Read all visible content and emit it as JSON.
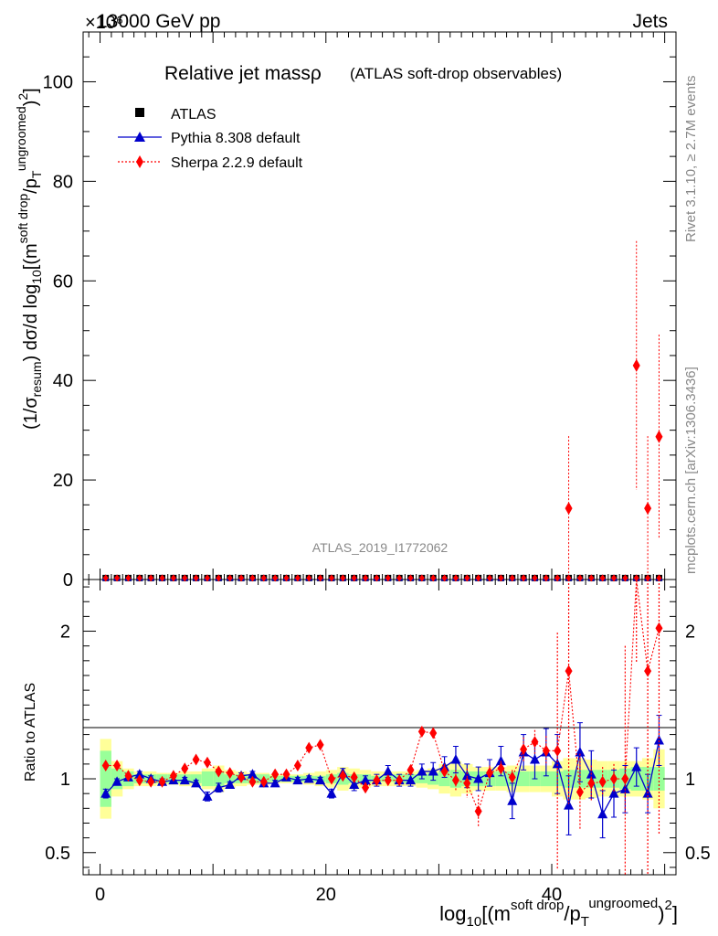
{
  "header": {
    "left": "13000 GeV pp",
    "right": "Jets",
    "exponent": "×10⁶"
  },
  "title": {
    "main": "Relative jet massρ",
    "sub": "(ATLAS soft-drop observables)"
  },
  "side": {
    "rivet": "Rivet 3.1.10, ≥ 2.7M events",
    "mcplots": "mcplots.cern.ch [arXiv:1306.3436]"
  },
  "watermark": "ATLAS_2019_I1772062",
  "legend": {
    "atlas": "ATLAS",
    "pythia": "Pythia 8.308 default",
    "sherpa": "Sherpa 2.2.9 default"
  },
  "axes": {
    "ylabel_pre": "(1/σ",
    "ylabel_sub": "resum",
    "ylabel_post": ") dσ/d log",
    "ylabel_10": "10",
    "ylabel_rest": "[(m",
    "ylabel_sup1": "soft drop",
    "ylabel_slash": "/p",
    "ylabel_T": "T",
    "ylabel_sup2": "ungroomed",
    "ylabel_end": ")",
    "ylabel_sq": "2",
    "ylabel_close": "]",
    "ratio_label": "Ratio to ATLAS",
    "xlabel_pre": "log",
    "xlabel_10": "10",
    "xlabel_rest": "[(m",
    "xlabel_sup1": "soft drop",
    "xlabel_slash": "/p",
    "xlabel_T": "T",
    "xlabel_sup2": "ungroomed",
    "xlabel_end": ")",
    "xlabel_sq": "2",
    "xlabel_close": "]"
  },
  "chart_data": {
    "type": "line",
    "x": [
      0.5,
      1.5,
      2.5,
      3.5,
      4.5,
      5.5,
      6.5,
      7.5,
      8.5,
      9.5,
      10.5,
      11.5,
      12.5,
      13.5,
      14.5,
      15.5,
      16.5,
      17.5,
      18.5,
      19.5,
      20.5,
      21.5,
      22.5,
      23.5,
      24.5,
      25.5,
      26.5,
      27.5,
      28.5,
      29.5,
      30.5,
      31.5,
      32.5,
      33.5,
      34.5,
      35.5,
      36.5,
      37.5,
      38.5,
      39.5,
      40.5,
      41.5,
      42.5,
      43.5,
      44.5,
      45.5,
      46.5,
      47.5,
      48.5,
      49.5
    ],
    "xlim": [
      -1.5,
      51
    ],
    "xticks": [
      0,
      20,
      40
    ],
    "main_ylim": [
      0,
      110
    ],
    "main_yticks": [
      0,
      20,
      40,
      60,
      80,
      100
    ],
    "ratio_ylim": [
      0.35,
      2.35
    ],
    "ratio_yticks": [
      0.5,
      1,
      2
    ],
    "ratio_ytick_labels": [
      "0.5",
      "1",
      "2"
    ],
    "series": [
      {
        "name": "Sherpa 2.2.9 default (upper panel)",
        "color": "#ff0000",
        "points": [
          [
            41.5,
            14.3,
            14.5
          ],
          [
            47.5,
            43,
            25
          ],
          [
            48.5,
            14.3,
            14.5
          ],
          [
            49.5,
            28.7,
            20.5
          ]
        ]
      },
      {
        "name": "Pythia 8.308 default",
        "color": "#0000cc",
        "values": [
          0.9,
          0.98,
          1.01,
          1.03,
          1.0,
          0.98,
          0.99,
          0.99,
          0.97,
          0.88,
          0.94,
          0.96,
          1.02,
          1.03,
          0.97,
          0.97,
          1.01,
          0.99,
          1.0,
          0.99,
          0.9,
          1.04,
          0.96,
          0.99,
          0.99,
          1.05,
          0.99,
          0.99,
          1.05,
          1.05,
          1.08,
          1.13,
          1.02,
          1.0,
          1.04,
          1.12,
          0.85,
          1.18,
          1.13,
          1.18,
          1.1,
          0.82,
          1.18,
          1.03,
          0.76,
          0.9,
          0.93,
          1.08,
          0.9,
          1.26
        ],
        "errors": [
          0.03,
          0.02,
          0.02,
          0.02,
          0.02,
          0.02,
          0.02,
          0.02,
          0.02,
          0.03,
          0.03,
          0.02,
          0.02,
          0.02,
          0.02,
          0.02,
          0.02,
          0.02,
          0.02,
          0.02,
          0.03,
          0.03,
          0.04,
          0.03,
          0.04,
          0.04,
          0.04,
          0.04,
          0.05,
          0.06,
          0.07,
          0.09,
          0.08,
          0.08,
          0.09,
          0.1,
          0.12,
          0.12,
          0.13,
          0.16,
          0.2,
          0.2,
          0.2,
          0.16,
          0.16,
          0.16,
          0.16,
          0.13,
          0.13,
          0.17
        ]
      },
      {
        "name": "Sherpa 2.2.9 default",
        "color": "#ff0000",
        "values": [
          1.09,
          1.09,
          1.02,
          0.99,
          0.98,
          0.98,
          1.02,
          1.07,
          1.13,
          1.11,
          1.05,
          1.04,
          1.01,
          0.98,
          0.98,
          1.03,
          1.03,
          1.09,
          1.21,
          1.23,
          1.0,
          1.02,
          1.01,
          0.94,
          0.99,
          0.99,
          0.99,
          1.06,
          1.32,
          1.31,
          1.05,
          0.99,
          0.97,
          0.78,
          1.04,
          1.07,
          1.01,
          1.2,
          1.25,
          1.19,
          1.19,
          1.73,
          0.91,
          0.97,
          0.98,
          1.0,
          1.0,
          4.18,
          1.73,
          2.02
        ],
        "errors": [
          0.02,
          0.02,
          0.02,
          0.02,
          0.02,
          0.02,
          0.02,
          0.02,
          0.02,
          0.02,
          0.02,
          0.02,
          0.02,
          0.02,
          0.02,
          0.02,
          0.02,
          0.02,
          0.02,
          0.02,
          0.02,
          0.02,
          0.02,
          0.03,
          0.03,
          0.03,
          0.03,
          0.03,
          0.03,
          0.03,
          0.05,
          0.07,
          0.1,
          0.11,
          0.05,
          0.05,
          0.05,
          0.08,
          0.08,
          0.1,
          0.8,
          0.9,
          0.26,
          0.12,
          0.1,
          0.1,
          0.9,
          2.4,
          1.5,
          1.4
        ]
      }
    ],
    "bands": {
      "green_half": [
        0.19,
        0.07,
        0.05,
        0.03,
        0.03,
        0.03,
        0.03,
        0.03,
        0.03,
        0.05,
        0.05,
        0.03,
        0.03,
        0.03,
        0.03,
        0.02,
        0.02,
        0.02,
        0.02,
        0.02,
        0.03,
        0.04,
        0.03,
        0.03,
        0.02,
        0.02,
        0.03,
        0.03,
        0.03,
        0.04,
        0.05,
        0.06,
        0.05,
        0.05,
        0.05,
        0.05,
        0.05,
        0.05,
        0.05,
        0.05,
        0.05,
        0.06,
        0.06,
        0.06,
        0.06,
        0.06,
        0.07,
        0.08,
        0.08,
        0.08
      ],
      "yellow_half": [
        0.27,
        0.12,
        0.07,
        0.05,
        0.05,
        0.04,
        0.04,
        0.05,
        0.05,
        0.07,
        0.09,
        0.06,
        0.05,
        0.04,
        0.04,
        0.03,
        0.03,
        0.03,
        0.04,
        0.05,
        0.06,
        0.08,
        0.07,
        0.06,
        0.05,
        0.05,
        0.05,
        0.05,
        0.06,
        0.07,
        0.1,
        0.12,
        0.1,
        0.08,
        0.08,
        0.08,
        0.09,
        0.09,
        0.09,
        0.09,
        0.12,
        0.14,
        0.14,
        0.13,
        0.12,
        0.12,
        0.12,
        0.12,
        0.14,
        0.2
      ]
    }
  }
}
